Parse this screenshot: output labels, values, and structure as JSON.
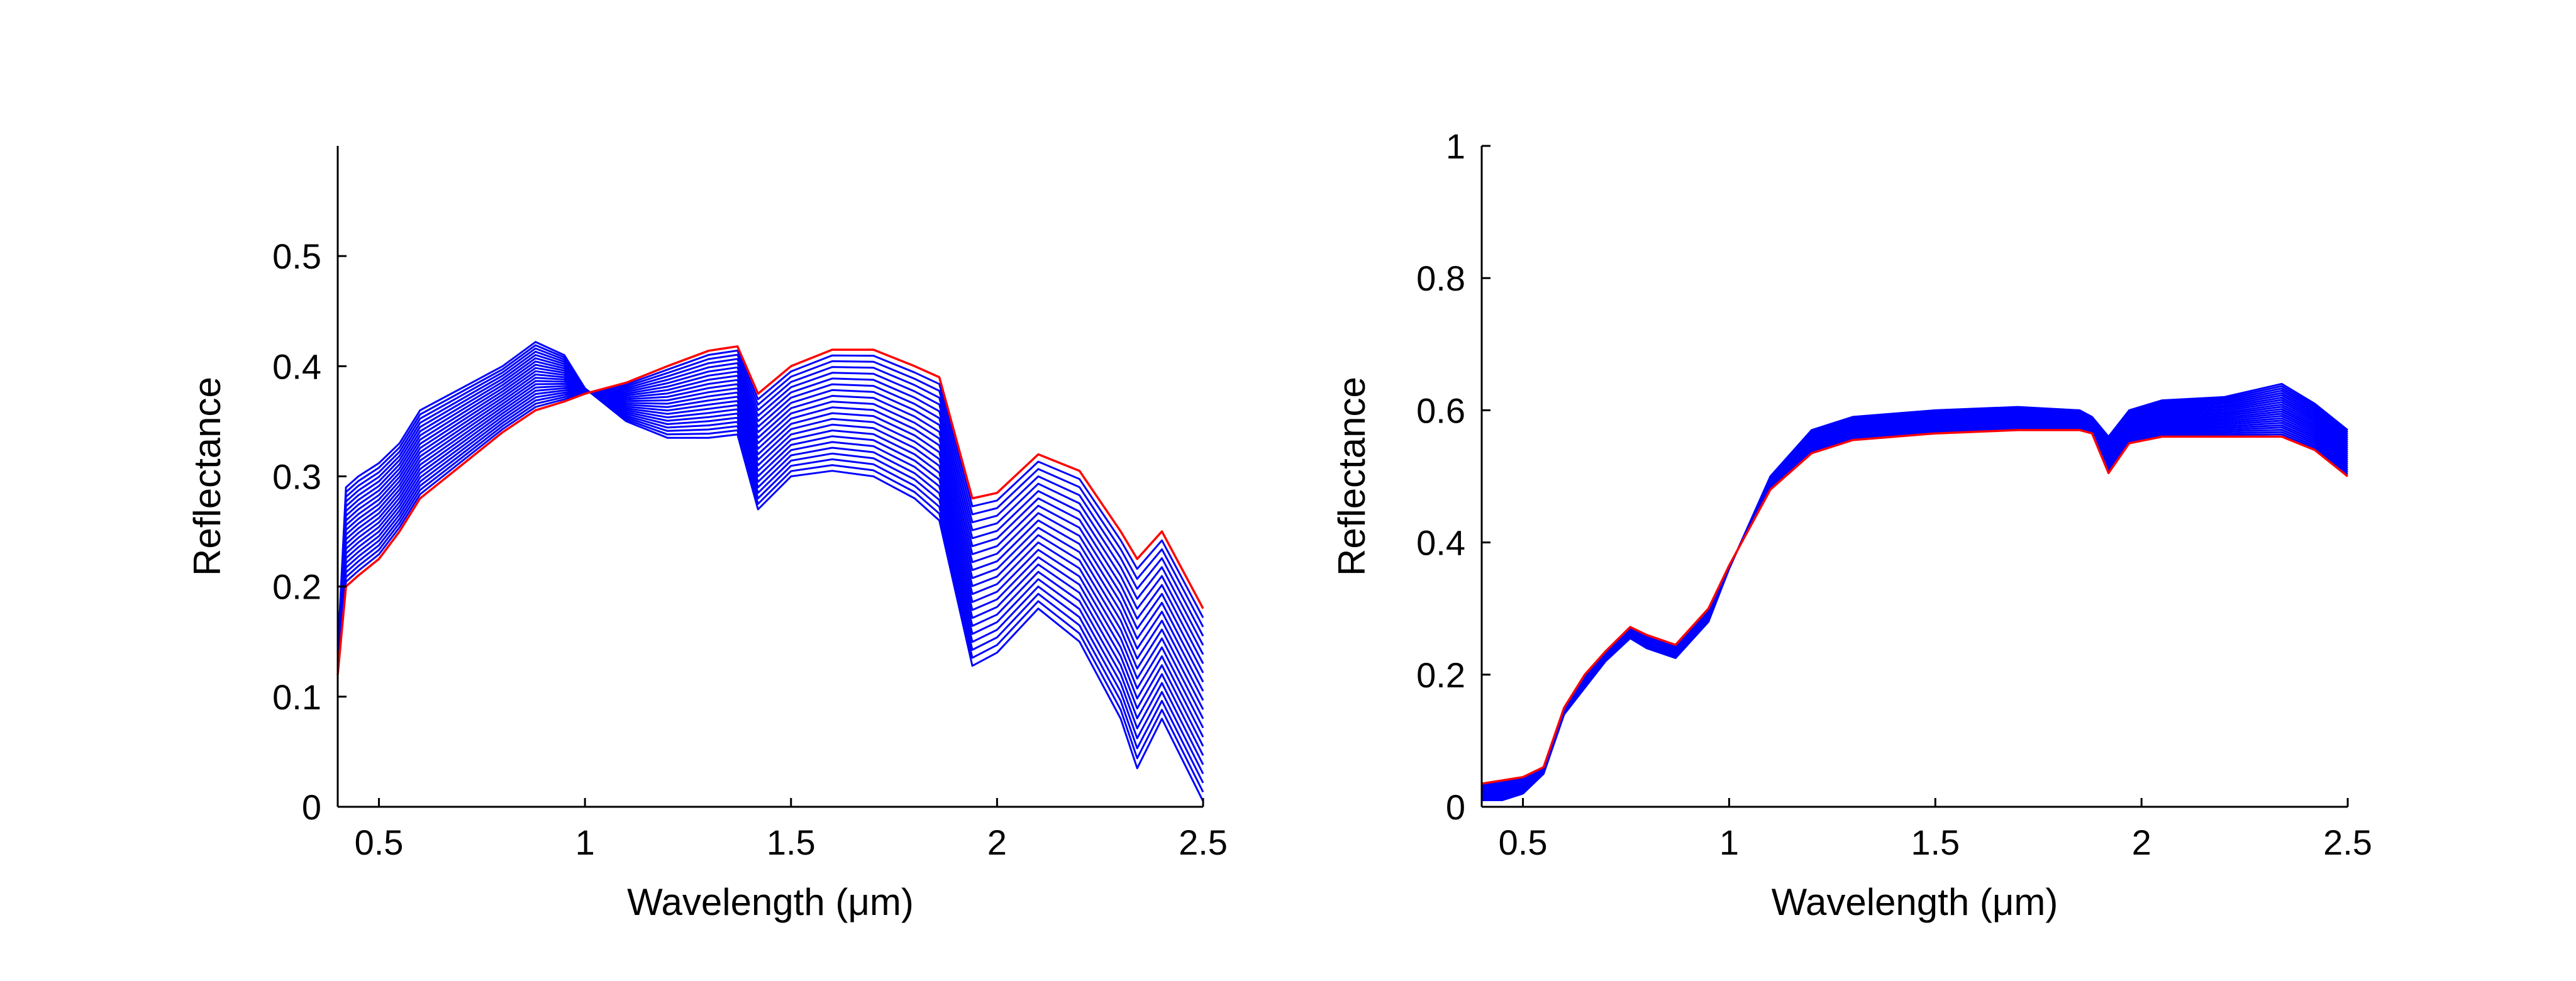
{
  "chart_data": [
    {
      "type": "line",
      "title": "",
      "xlabel": "Wavelength (μm)",
      "ylabel": "Reflectance",
      "xlim": [
        0.4,
        2.5
      ],
      "ylim": [
        0,
        0.6
      ],
      "xticks": [
        0.5,
        1,
        1.5,
        2,
        2.5
      ],
      "xtick_labels": [
        "0.5",
        "1",
        "1.5",
        "2",
        "2.5"
      ],
      "yticks": [
        0,
        0.1,
        0.2,
        0.3,
        0.4,
        0.5
      ],
      "ytick_labels": [
        "0",
        "0.1",
        "0.2",
        "0.3",
        "0.4",
        "0.5"
      ],
      "grid": false,
      "box": false,
      "x": [
        0.4,
        0.42,
        0.45,
        0.5,
        0.55,
        0.6,
        0.7,
        0.8,
        0.88,
        0.95,
        1.0,
        1.1,
        1.2,
        1.3,
        1.37,
        1.42,
        1.5,
        1.6,
        1.7,
        1.8,
        1.86,
        1.94,
        2.0,
        2.1,
        2.2,
        2.3,
        2.34,
        2.4,
        2.5
      ],
      "colors": {
        "ensemble": "#0000ff",
        "reference": "#ff0000"
      },
      "series_count": 22,
      "series": [
        {
          "values": [
            0.14,
            0.29,
            0.3,
            0.312,
            0.33,
            0.36,
            0.38,
            0.4,
            0.422,
            0.41,
            0.38,
            0.35,
            0.335,
            0.335,
            0.338,
            0.27,
            0.3,
            0.305,
            0.3,
            0.28,
            0.26,
            0.128,
            0.14,
            0.18,
            0.15,
            0.08,
            0.035,
            0.08,
            0.005
          ]
        },
        {
          "values": [
            0.12,
            0.2,
            0.21,
            0.225,
            0.25,
            0.28,
            0.31,
            0.34,
            0.36,
            0.368,
            0.375,
            0.385,
            0.4,
            0.414,
            0.418,
            0.375,
            0.4,
            0.415,
            0.415,
            0.4,
            0.39,
            0.28,
            0.285,
            0.32,
            0.305,
            0.25,
            0.225,
            0.25,
            0.18
          ]
        }
      ],
      "reference_series_index": 1
    },
    {
      "type": "line",
      "title": "",
      "xlabel": "Wavelength (μm)",
      "ylabel": "Reflectance",
      "xlim": [
        0.4,
        2.5
      ],
      "ylim": [
        0,
        1
      ],
      "xticks": [
        0.5,
        1,
        1.5,
        2,
        2.5
      ],
      "xtick_labels": [
        "0.5",
        "1",
        "1.5",
        "2",
        "2.5"
      ],
      "yticks": [
        0,
        0.2,
        0.4,
        0.6,
        0.8,
        1
      ],
      "ytick_labels": [
        "0",
        "0.2",
        "0.4",
        "0.6",
        "0.8",
        "1"
      ],
      "grid": false,
      "box": false,
      "x": [
        0.4,
        0.45,
        0.5,
        0.55,
        0.6,
        0.65,
        0.7,
        0.76,
        0.8,
        0.87,
        0.95,
        1.0,
        1.1,
        1.2,
        1.3,
        1.5,
        1.7,
        1.85,
        1.88,
        1.92,
        1.97,
        2.05,
        2.2,
        2.34,
        2.42,
        2.5
      ],
      "colors": {
        "ensemble": "#0000ff",
        "reference": "#ff0000"
      },
      "series_count": 24,
      "series": [
        {
          "values": [
            0.01,
            0.01,
            0.02,
            0.05,
            0.14,
            0.18,
            0.22,
            0.255,
            0.24,
            0.225,
            0.28,
            0.36,
            0.5,
            0.57,
            0.59,
            0.6,
            0.605,
            0.6,
            0.59,
            0.56,
            0.6,
            0.615,
            0.62,
            0.64,
            0.61,
            0.57
          ]
        },
        {
          "values": [
            0.035,
            0.04,
            0.045,
            0.06,
            0.15,
            0.2,
            0.235,
            0.272,
            0.26,
            0.245,
            0.3,
            0.365,
            0.48,
            0.535,
            0.555,
            0.565,
            0.57,
            0.57,
            0.565,
            0.505,
            0.55,
            0.56,
            0.56,
            0.56,
            0.54,
            0.5
          ]
        }
      ],
      "reference_series_index": 1
    }
  ]
}
